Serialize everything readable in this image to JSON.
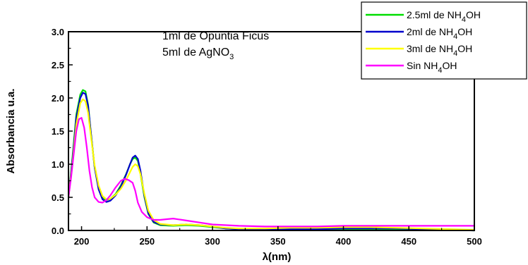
{
  "chart_data": {
    "type": "line",
    "title": "",
    "xlabel": "λ(nm)",
    "ylabel": "Absorbancia u.a.",
    "xlim": [
      190,
      500
    ],
    "ylim": [
      0,
      3.0
    ],
    "xticks": [
      "200",
      "250",
      "300",
      "350",
      "400",
      "450",
      "500"
    ],
    "yticks": [
      "0.0",
      "0.5",
      "1.0",
      "1.5",
      "2.0",
      "2.5",
      "3.0"
    ],
    "grid": false,
    "legend_position": "top-right",
    "annotations": [
      {
        "main": "1ml de Opuntia Ficus",
        "sub": "",
        "tail": ""
      },
      {
        "main": "5ml de AgNO",
        "sub": "3",
        "tail": ""
      }
    ],
    "series": [
      {
        "name": "2.5ml de NH4OH",
        "legend": {
          "main": "2.5ml de NH",
          "sub": "4",
          "tail": "OH"
        },
        "color": "#00dd00",
        "x": [
          190,
          193,
          196,
          199,
          201,
          203,
          205,
          207,
          210,
          213,
          216,
          219,
          222,
          226,
          230,
          234,
          237,
          239,
          241,
          243,
          245,
          248,
          251,
          255,
          260,
          270,
          280,
          290,
          300,
          310,
          320,
          340,
          360,
          380,
          400,
          420,
          440,
          460,
          480,
          500
        ],
        "y": [
          0.5,
          1.1,
          1.75,
          2.05,
          2.12,
          2.1,
          1.9,
          1.5,
          0.95,
          0.65,
          0.5,
          0.46,
          0.48,
          0.55,
          0.68,
          0.85,
          1.0,
          1.08,
          1.1,
          1.05,
          0.85,
          0.5,
          0.25,
          0.12,
          0.08,
          0.07,
          0.08,
          0.07,
          0.05,
          0.03,
          0.02,
          0.02,
          0.02,
          0.02,
          0.02,
          0.02,
          0.02,
          0.02,
          0.01,
          0.0
        ]
      },
      {
        "name": "2ml de NH4OH",
        "legend": {
          "main": "2ml de NH",
          "sub": "4",
          "tail": "OH"
        },
        "color": "#0000cc",
        "x": [
          190,
          193,
          196,
          199,
          201,
          203,
          205,
          207,
          210,
          213,
          216,
          219,
          222,
          226,
          230,
          234,
          237,
          239,
          241,
          243,
          245,
          248,
          251,
          255,
          260,
          270,
          280,
          290,
          300,
          310,
          320,
          340,
          360,
          380,
          400,
          420,
          440,
          460,
          480,
          500
        ],
        "y": [
          0.5,
          1.05,
          1.7,
          2.0,
          2.08,
          2.06,
          1.88,
          1.5,
          0.95,
          0.62,
          0.47,
          0.43,
          0.45,
          0.53,
          0.66,
          0.84,
          1.0,
          1.1,
          1.13,
          1.08,
          0.9,
          0.52,
          0.26,
          0.13,
          0.09,
          0.08,
          0.09,
          0.08,
          0.06,
          0.03,
          0.02,
          0.02,
          0.02,
          0.02,
          0.03,
          0.03,
          0.03,
          0.02,
          0.01,
          0.0
        ]
      },
      {
        "name": "3ml de NH4OH",
        "legend": {
          "main": "3ml de NH",
          "sub": "4",
          "tail": "OH"
        },
        "color": "#ffff00",
        "x": [
          190,
          193,
          196,
          199,
          201,
          203,
          205,
          207,
          210,
          213,
          216,
          219,
          222,
          226,
          230,
          234,
          237,
          239,
          241,
          243,
          245,
          248,
          251,
          255,
          260,
          270,
          280,
          290,
          300,
          310,
          320,
          340,
          360,
          380,
          400,
          420,
          440,
          460,
          480,
          500
        ],
        "y": [
          0.5,
          1.0,
          1.6,
          1.92,
          1.98,
          1.95,
          1.78,
          1.45,
          0.98,
          0.68,
          0.52,
          0.47,
          0.48,
          0.54,
          0.63,
          0.76,
          0.88,
          0.96,
          1.0,
          0.97,
          0.85,
          0.55,
          0.3,
          0.16,
          0.1,
          0.08,
          0.09,
          0.08,
          0.06,
          0.04,
          0.03,
          0.03,
          0.04,
          0.04,
          0.05,
          0.05,
          0.04,
          0.03,
          0.02,
          0.01
        ]
      },
      {
        "name": "Sin NH4OH",
        "legend": {
          "main": "Sin NH",
          "sub": "4",
          "tail": "OH"
        },
        "color": "#ff00ff",
        "x": [
          190,
          192,
          194,
          196,
          198,
          200,
          202,
          204,
          206,
          208,
          210,
          213,
          216,
          219,
          222,
          226,
          230,
          233,
          236,
          239,
          241,
          243,
          246,
          250,
          255,
          260,
          265,
          270,
          280,
          290,
          300,
          320,
          340,
          360,
          380,
          400,
          420,
          440,
          460,
          480,
          500
        ],
        "y": [
          0.5,
          0.8,
          1.15,
          1.5,
          1.68,
          1.7,
          1.55,
          1.25,
          0.9,
          0.65,
          0.5,
          0.43,
          0.42,
          0.46,
          0.53,
          0.65,
          0.75,
          0.78,
          0.76,
          0.72,
          0.6,
          0.42,
          0.28,
          0.2,
          0.16,
          0.16,
          0.17,
          0.18,
          0.15,
          0.12,
          0.09,
          0.07,
          0.06,
          0.06,
          0.06,
          0.07,
          0.07,
          0.07,
          0.07,
          0.07,
          0.07
        ]
      }
    ]
  }
}
